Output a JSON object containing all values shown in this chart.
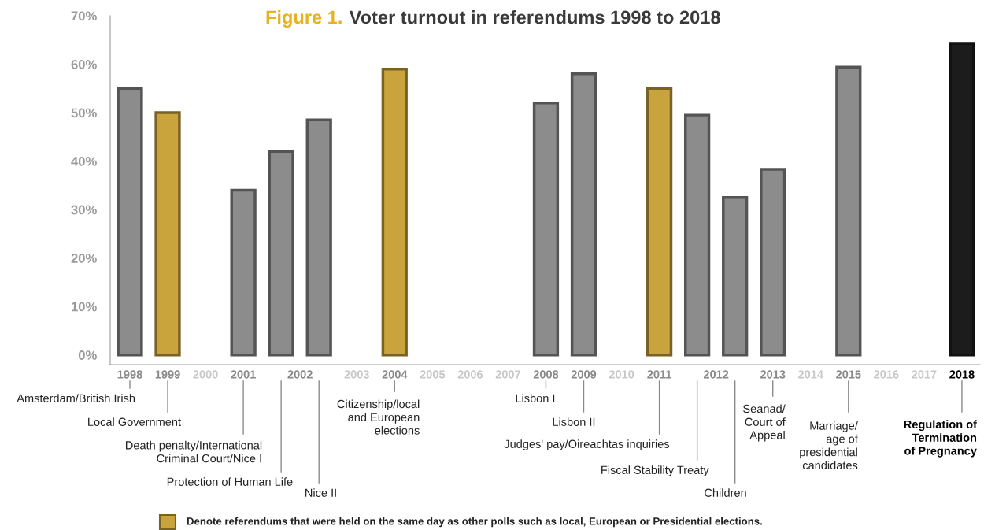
{
  "chart_data": {
    "type": "bar",
    "title": "Figure 1. Voter turnout in referendums 1998 to 2018",
    "categories": [
      "1998",
      "1999",
      "2000",
      "2001",
      "2002",
      null,
      "2003",
      "2004",
      "2005",
      "2006",
      "2007",
      "2008",
      "2009",
      "2010",
      "2011",
      "2012",
      null,
      "2013",
      "2014",
      "2015",
      "2016",
      "2017",
      "2018"
    ],
    "values": [
      55,
      50,
      null,
      34,
      42,
      48.5,
      null,
      59,
      null,
      null,
      null,
      52,
      58,
      null,
      55,
      49.5,
      32.5,
      38.3,
      null,
      59.4,
      null,
      null,
      64.3
    ],
    "colors": [
      "#8c8c8c",
      "#c9a43c",
      null,
      "#8c8c8c",
      "#8c8c8c",
      "#8c8c8c",
      null,
      "#c9a43c",
      null,
      null,
      null,
      "#8c8c8c",
      "#8c8c8c",
      null,
      "#c9a43c",
      "#8c8c8c",
      "#8c8c8c",
      "#8c8c8c",
      null,
      "#8c8c8c",
      null,
      null,
      "#1c1c1c"
    ],
    "ylim": [
      -2,
      70
    ],
    "yticks": [
      {
        "value": 0,
        "label": "0%"
      },
      {
        "value": 10,
        "label": "10%"
      },
      {
        "value": 20,
        "label": "20%"
      },
      {
        "value": 30,
        "label": "30%"
      },
      {
        "value": 40,
        "label": "40%"
      },
      {
        "value": 50,
        "label": "50%"
      },
      {
        "value": 60,
        "label": "60%"
      },
      {
        "value": 70,
        "label": "70%"
      }
    ],
    "annotations": [
      "Amsterdam/British Irish",
      "Local Government",
      "Death penalty/International\nCriminal Court/Nice I",
      "Protection of Human Life",
      "Nice II",
      "Citizenship/local\nand European\nelections",
      "Lisbon I",
      "Lisbon II",
      "Judges' pay/Oireachtas inquiries",
      "Fiscal Stability Treaty",
      "Children",
      "Seanad/\nCourt of\nAppeal",
      "Marriage/\nage of\npresidential\ncandidates",
      "Regulation of\nTermination\nof Pregnancy",
      "Denote referendums that were held on the same day as other polls such as local, European or Presidential elections."
    ]
  }
}
